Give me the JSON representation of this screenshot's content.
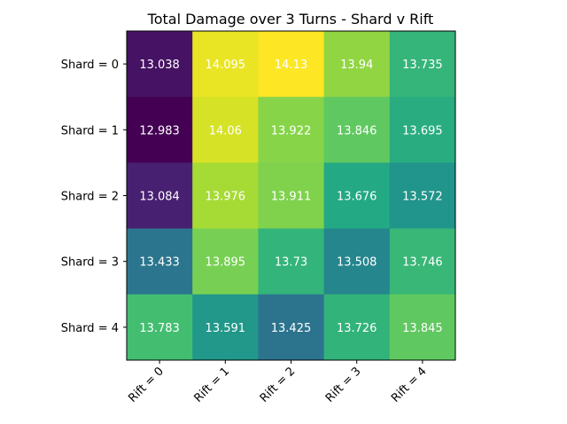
{
  "chart_data": {
    "type": "heatmap",
    "title": "Total Damage over 3 Turns - Shard v Rift",
    "xlabel": "",
    "ylabel": "",
    "x_categories": [
      "Rift = 0",
      "Rift = 1",
      "Rift = 2",
      "Rift = 3",
      "Rift = 4"
    ],
    "y_categories": [
      "Shard = 0",
      "Shard = 1",
      "Shard = 2",
      "Shard = 3",
      "Shard = 4"
    ],
    "values": [
      [
        13.038,
        14.095,
        14.13,
        13.94,
        13.735
      ],
      [
        12.983,
        14.06,
        13.922,
        13.846,
        13.695
      ],
      [
        13.084,
        13.976,
        13.911,
        13.676,
        13.572
      ],
      [
        13.433,
        13.895,
        13.73,
        13.508,
        13.746
      ],
      [
        13.783,
        13.591,
        13.425,
        13.726,
        13.845
      ]
    ],
    "value_labels": [
      [
        "13.038",
        "14.095",
        "14.13",
        "13.94",
        "13.735"
      ],
      [
        "12.983",
        "14.06",
        "13.922",
        "13.846",
        "13.695"
      ],
      [
        "13.084",
        "13.976",
        "13.911",
        "13.676",
        "13.572"
      ],
      [
        "13.433",
        "13.895",
        "13.73",
        "13.508",
        "13.746"
      ],
      [
        "13.783",
        "13.591",
        "13.425",
        "13.726",
        "13.845"
      ]
    ],
    "colormap": "viridis",
    "grid": false,
    "legend": "none"
  }
}
